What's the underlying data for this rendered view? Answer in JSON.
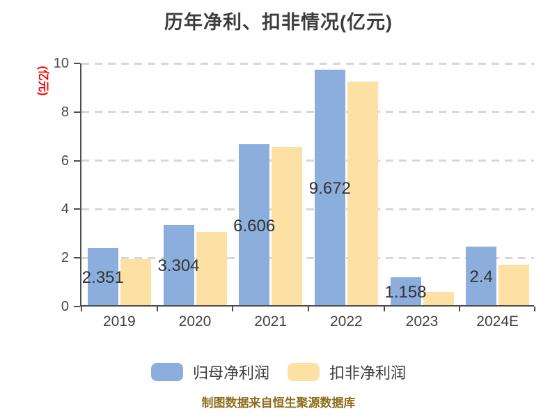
{
  "title": "历年净利、扣非情况(亿元)",
  "ylabel": "(亿元)",
  "footer": "制图数据来自恒生聚源数据库",
  "colors": {
    "series1_blue": "#8BAEDC",
    "series2_yellow": "#FCE0A4",
    "title_text": "#3D3D3D",
    "tick_text": "#4A4A4A",
    "value_label_text": "#333333",
    "axis_line": "#4D4D4D",
    "gridline": "#D7D7D7",
    "ylabel_red": "#FF0000",
    "footer_gold": "#8E6D1D",
    "background": "#FFFFFF"
  },
  "legend": [
    {
      "label": "归母净利润",
      "color": "#8BAEDC"
    },
    {
      "label": "扣非净利润",
      "color": "#FCE0A4"
    }
  ],
  "chart_data": {
    "type": "bar",
    "title": "历年净利、扣非情况(亿元)",
    "xlabel": "",
    "ylabel": "(亿元)",
    "categories": [
      "2019",
      "2020",
      "2021",
      "2022",
      "2023",
      "2024E"
    ],
    "series": [
      {
        "name": "归母净利润",
        "color": "#8BAEDC",
        "values": [
          2.351,
          3.304,
          6.606,
          9.672,
          1.158,
          2.4
        ],
        "labels": [
          "2.351",
          "3.304",
          "6.606",
          "9.672",
          "1.158",
          "2.4"
        ]
      },
      {
        "name": "扣非净利润",
        "color": "#FCE0A4",
        "values": [
          1.9,
          3.0,
          6.5,
          9.2,
          0.55,
          1.65
        ],
        "labels": []
      }
    ],
    "ylim": [
      0,
      10
    ],
    "yticks": [
      0,
      2,
      4,
      6,
      8,
      10
    ],
    "grid": "horizontal-dashed",
    "legend_position": "bottom",
    "value_labels_on": "series1-centered"
  }
}
